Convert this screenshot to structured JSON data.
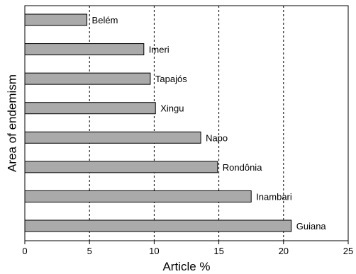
{
  "chart_data": {
    "type": "bar",
    "orientation": "horizontal",
    "categories": [
      "Belém",
      "Imeri",
      "Tapajós",
      "Xingu",
      "Napo",
      "Rondônia",
      "Inambari",
      "Guiana"
    ],
    "values": [
      4.8,
      9.2,
      9.7,
      10.1,
      13.6,
      14.9,
      17.5,
      20.6
    ],
    "xlabel": "Article %",
    "ylabel": "Area of endemism",
    "xlim": [
      0,
      25
    ],
    "xticks": [
      "0",
      "5",
      "10",
      "15",
      "20",
      "25"
    ],
    "grid": "vertical dashed lines",
    "bar_color": "#aaaaaa",
    "bar_edge_color": "#000000"
  }
}
